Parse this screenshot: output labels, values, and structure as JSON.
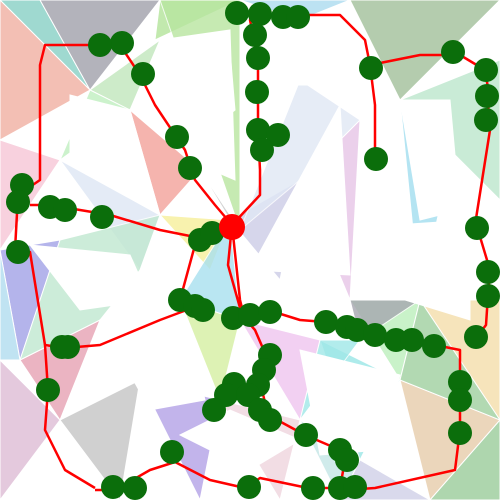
{
  "game": {
    "background_color": "#ffffff",
    "path_color": "#ff0000",
    "node_color": "#0b6e0b",
    "current_position_color": "#ff0000",
    "tiles": [
      {
        "color": "#8fd3c8"
      },
      {
        "color": "#a6a6b0"
      },
      {
        "color": "#f2b5a8"
      },
      {
        "color": "#b8e6a0"
      },
      {
        "color": "#c5e8c0"
      },
      {
        "color": "#f7c9d9"
      },
      {
        "color": "#b1ddf0"
      },
      {
        "color": "#a8c4a0"
      },
      {
        "color": "#c0e8d0"
      },
      {
        "color": "#f4a8a0"
      },
      {
        "color": "#e0e8f5"
      },
      {
        "color": "#a8a8e8"
      },
      {
        "color": "#f7f0a0"
      },
      {
        "color": "#d0d0e8"
      },
      {
        "color": "#e8c8e8"
      },
      {
        "color": "#a8e0f0"
      },
      {
        "color": "#f5e0b0"
      },
      {
        "color": "#c0f0c0"
      },
      {
        "color": "#e8a8b8"
      },
      {
        "color": "#b8b8d8"
      },
      {
        "color": "#d8f0a8"
      },
      {
        "color": "#f0c8f0"
      },
      {
        "color": "#a0e8e8"
      },
      {
        "color": "#e8d0b0"
      },
      {
        "color": "#c8c8c8"
      },
      {
        "color": "#b8a8e8"
      },
      {
        "color": "#f0d8e0"
      },
      {
        "color": "#c8e8e8"
      },
      {
        "color": "#e0c0d8"
      },
      {
        "color": "#a0d0a0"
      }
    ]
  }
}
